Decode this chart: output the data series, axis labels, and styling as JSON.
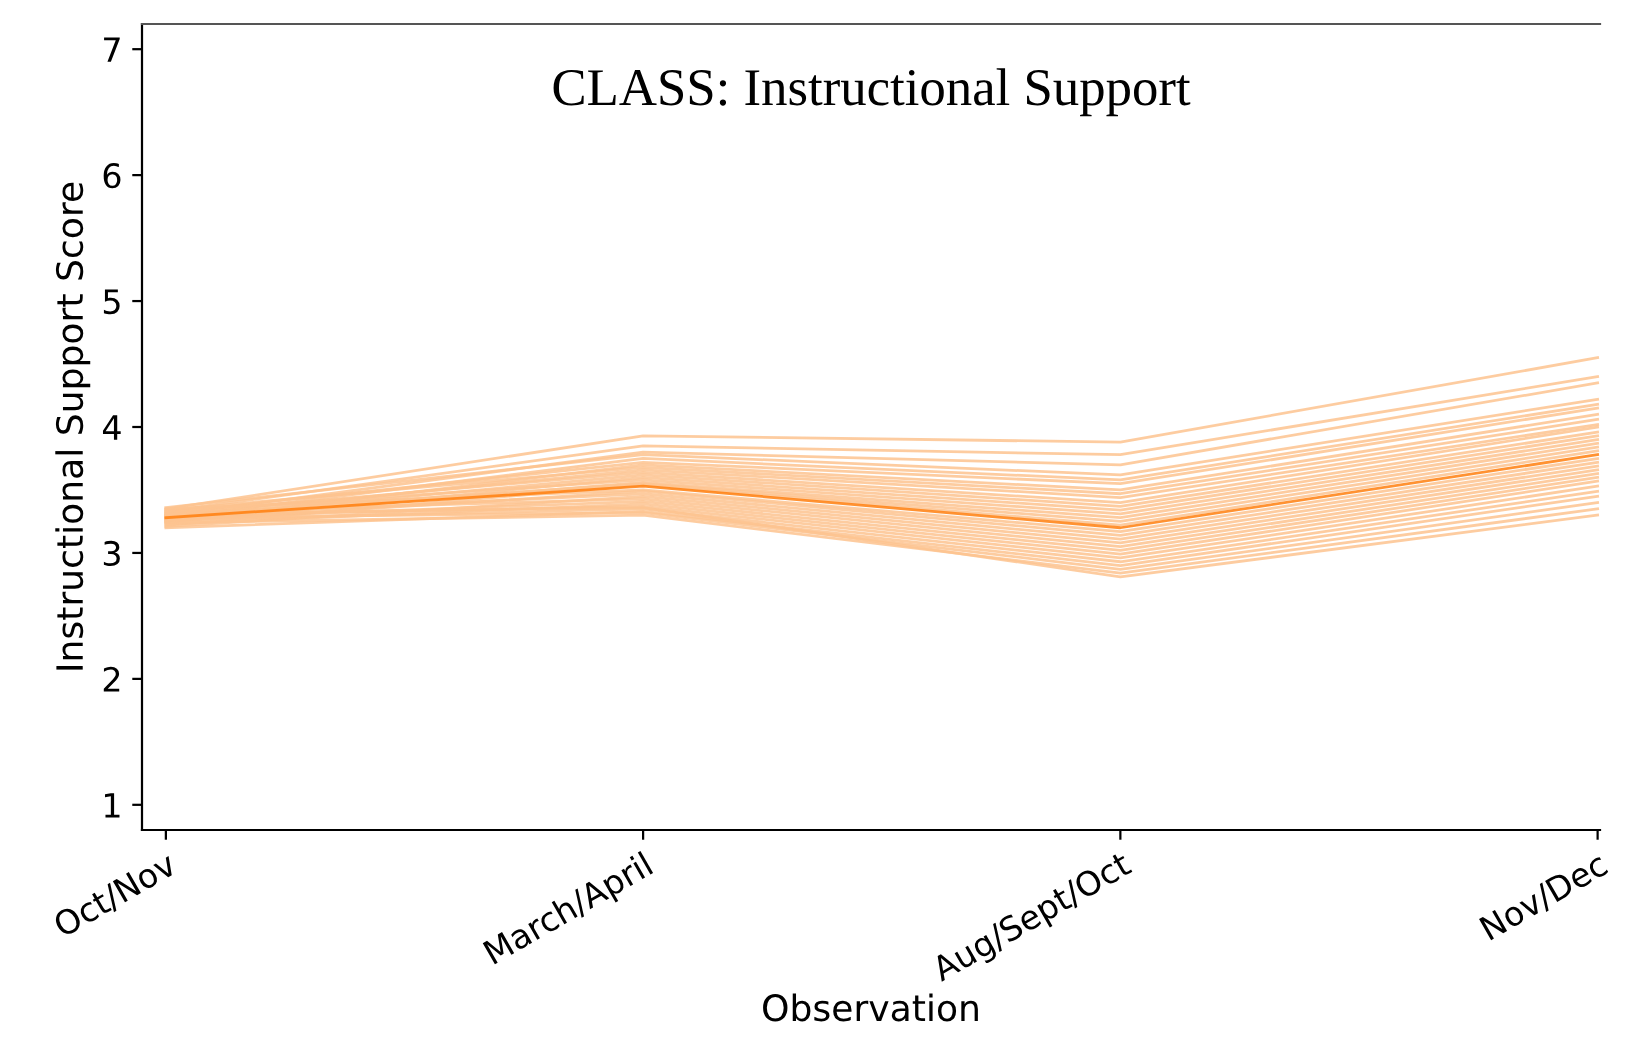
{
  "chart_data": {
    "type": "line",
    "title": "CLASS: Instructional Support",
    "xlabel": "Observation",
    "ylabel": "Instructional Support Score",
    "categories": [
      "Oct/Nov",
      "March/April",
      "Aug/Sept/Oct",
      "Nov/Dec"
    ],
    "ylim": [
      0.8,
      7.2
    ],
    "yticks": [
      1,
      2,
      3,
      4,
      5,
      6,
      7
    ],
    "grid": false,
    "legend": false,
    "marker": "none",
    "line_style": "solid",
    "series": [
      {
        "color": "#fdc38f",
        "values": [
          3.35,
          3.93,
          3.88,
          4.55
        ]
      },
      {
        "color": "#fdc38f",
        "values": [
          3.33,
          3.85,
          3.78,
          4.4
        ]
      },
      {
        "color": "#fdc38f",
        "values": [
          3.3,
          3.8,
          3.7,
          4.35
        ]
      },
      {
        "color": "#fdc38f",
        "values": [
          3.36,
          3.78,
          3.62,
          4.22
        ]
      },
      {
        "color": "#fdc38f",
        "values": [
          3.28,
          3.75,
          3.58,
          4.18
        ]
      },
      {
        "color": "#fdc38f",
        "values": [
          3.32,
          3.72,
          3.55,
          4.15
        ]
      },
      {
        "color": "#fdc38f",
        "values": [
          3.25,
          3.7,
          3.5,
          4.1
        ]
      },
      {
        "color": "#fdc38f",
        "values": [
          3.34,
          3.68,
          3.47,
          4.06
        ]
      },
      {
        "color": "#fdc38f",
        "values": [
          3.29,
          3.66,
          3.44,
          4.02
        ]
      },
      {
        "color": "#fdc38f",
        "values": [
          3.31,
          3.64,
          3.4,
          4.0
        ]
      },
      {
        "color": "#fdc38f",
        "values": [
          3.27,
          3.62,
          3.37,
          3.96
        ]
      },
      {
        "color": "#fdc38f",
        "values": [
          3.24,
          3.6,
          3.34,
          3.93
        ]
      },
      {
        "color": "#fdc38f",
        "values": [
          3.33,
          3.58,
          3.31,
          3.9
        ]
      },
      {
        "color": "#fdc38f",
        "values": [
          3.26,
          3.56,
          3.28,
          3.87
        ]
      },
      {
        "color": "#fdc38f",
        "values": [
          3.3,
          3.55,
          3.25,
          3.84
        ]
      },
      {
        "color": "#fdc38f",
        "values": [
          3.22,
          3.54,
          3.22,
          3.81
        ]
      },
      {
        "color": "#fdc38f",
        "values": [
          3.35,
          3.5,
          3.17,
          3.75
        ]
      },
      {
        "color": "#fdc38f",
        "values": [
          3.25,
          3.49,
          3.14,
          3.72
        ]
      },
      {
        "color": "#fdc38f",
        "values": [
          3.29,
          3.47,
          3.11,
          3.69
        ]
      },
      {
        "color": "#fdc38f",
        "values": [
          3.21,
          3.45,
          3.08,
          3.66
        ]
      },
      {
        "color": "#fdc38f",
        "values": [
          3.32,
          3.43,
          3.05,
          3.63
        ]
      },
      {
        "color": "#fdc38f",
        "values": [
          3.27,
          3.41,
          3.02,
          3.6
        ]
      },
      {
        "color": "#fdc38f",
        "values": [
          3.23,
          3.39,
          2.99,
          3.57
        ]
      },
      {
        "color": "#fdc38f",
        "values": [
          3.3,
          3.37,
          2.96,
          3.53
        ]
      },
      {
        "color": "#fdc38f",
        "values": [
          3.26,
          3.35,
          2.93,
          3.49
        ]
      },
      {
        "color": "#fdc38f",
        "values": [
          3.2,
          3.33,
          2.9,
          3.45
        ]
      },
      {
        "color": "#fdc38f",
        "values": [
          3.28,
          3.32,
          2.87,
          3.4
        ]
      },
      {
        "color": "#fdc38f",
        "values": [
          3.24,
          3.3,
          2.84,
          3.35
        ]
      },
      {
        "color": "#fdc38f",
        "values": [
          3.31,
          3.36,
          2.81,
          3.3
        ]
      },
      {
        "color": "#ff7f0e",
        "values": [
          3.28,
          3.53,
          3.2,
          3.78
        ]
      }
    ]
  }
}
